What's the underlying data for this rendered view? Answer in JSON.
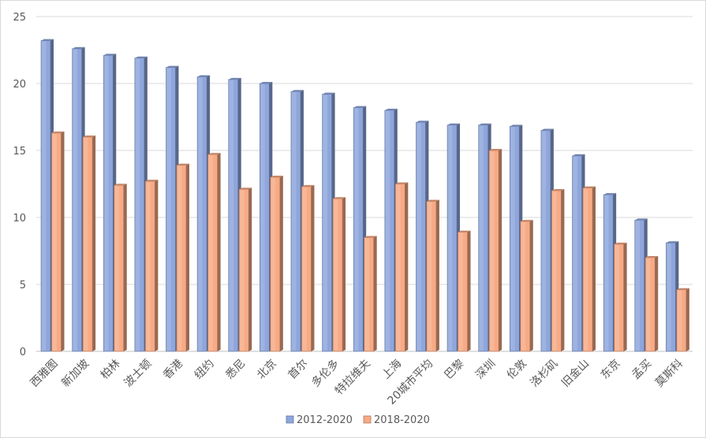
{
  "chart_data": {
    "type": "bar",
    "title": "",
    "xlabel": "",
    "ylabel": "",
    "ylim": [
      0,
      25
    ],
    "yticks": [
      0,
      5,
      10,
      15,
      20,
      25
    ],
    "grid": true,
    "legend_position": "bottom",
    "categories": [
      "西雅图",
      "新加坡",
      "柏林",
      "波士顿",
      "香港",
      "纽约",
      "悉尼",
      "北京",
      "首尔",
      "多伦多",
      "特拉维夫",
      "上海",
      "20城市平均",
      "巴黎",
      "深圳",
      "伦敦",
      "洛杉矶",
      "旧金山",
      "东京",
      "孟买",
      "莫斯科"
    ],
    "series": [
      {
        "name": "2012-2020",
        "color": "#8ea6dc",
        "values": [
          23.2,
          22.6,
          22.1,
          21.9,
          21.2,
          20.5,
          20.3,
          20.0,
          19.4,
          19.2,
          18.2,
          18.0,
          17.1,
          16.9,
          16.9,
          16.8,
          16.5,
          14.6,
          11.7,
          9.8,
          8.1
        ]
      },
      {
        "name": "2018-2020",
        "color": "#f7aa85",
        "values": [
          16.3,
          16.0,
          12.4,
          12.7,
          13.9,
          14.7,
          12.1,
          13.0,
          12.3,
          11.4,
          8.5,
          12.5,
          11.2,
          8.9,
          15.0,
          9.7,
          12.0,
          12.2,
          8.0,
          7.0,
          4.6
        ]
      }
    ]
  }
}
